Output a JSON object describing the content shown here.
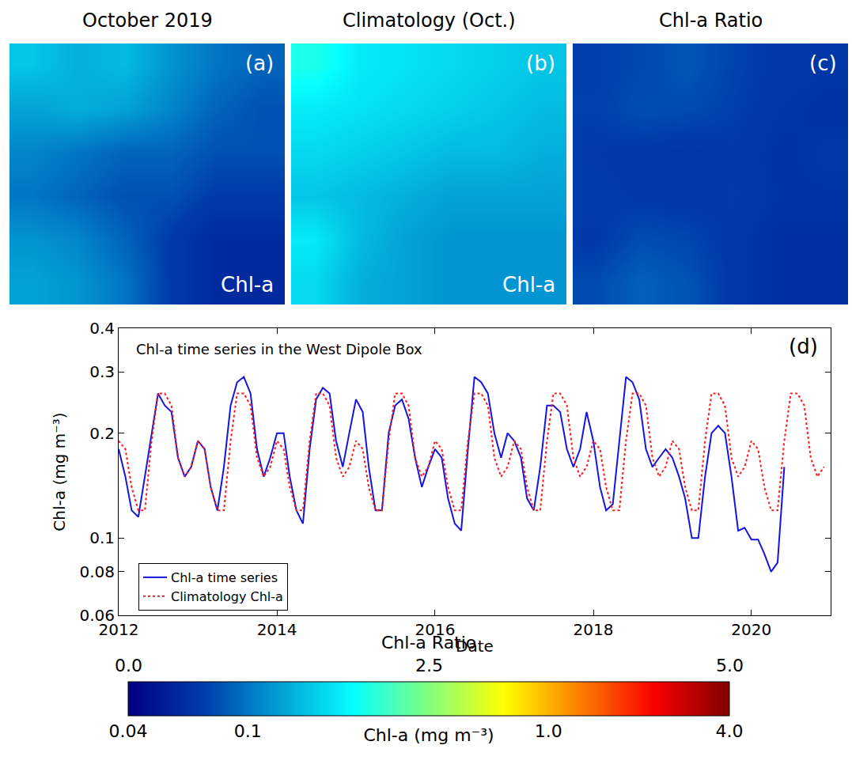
{
  "chart_data": [
    {
      "type": "heatmap",
      "title": "October 2019",
      "annotations": [
        "(a)",
        "Chl-a"
      ],
      "log": true,
      "zlim": [
        0.04,
        4
      ],
      "cells": [
        [
          0.16,
          0.14,
          0.15,
          0.12,
          0.1,
          0.09
        ],
        [
          0.13,
          0.14,
          0.13,
          0.11,
          0.09,
          0.08
        ],
        [
          0.11,
          0.1,
          0.09,
          0.09,
          0.08,
          0.08
        ],
        [
          0.1,
          0.09,
          0.08,
          0.08,
          0.07,
          0.07
        ],
        [
          0.12,
          0.11,
          0.09,
          0.07,
          0.06,
          0.06
        ],
        [
          0.13,
          0.12,
          0.1,
          0.07,
          0.06,
          0.06
        ]
      ]
    },
    {
      "type": "heatmap",
      "title": "Climatology (Oct.)",
      "annotations": [
        "(b)",
        "Chl-a"
      ],
      "log": true,
      "zlim": [
        0.04,
        4
      ],
      "cells": [
        [
          0.25,
          0.2,
          0.19,
          0.18,
          0.17,
          0.16
        ],
        [
          0.2,
          0.19,
          0.18,
          0.17,
          0.16,
          0.15
        ],
        [
          0.18,
          0.17,
          0.16,
          0.15,
          0.15,
          0.14
        ],
        [
          0.16,
          0.15,
          0.14,
          0.13,
          0.13,
          0.13
        ],
        [
          0.2,
          0.15,
          0.13,
          0.12,
          0.12,
          0.12
        ],
        [
          0.18,
          0.14,
          0.13,
          0.12,
          0.12,
          0.12
        ]
      ]
    },
    {
      "type": "heatmap",
      "title": "Chl-a Ratio",
      "annotations": [
        "(c)"
      ],
      "log": false,
      "zlim": [
        0,
        5
      ],
      "cells": [
        [
          0.64,
          0.7,
          0.79,
          0.67,
          0.59,
          0.56
        ],
        [
          0.65,
          0.74,
          0.72,
          0.65,
          0.56,
          0.53
        ],
        [
          0.61,
          0.59,
          0.56,
          0.6,
          0.53,
          0.57
        ],
        [
          0.63,
          0.6,
          0.57,
          0.62,
          0.54,
          0.54
        ],
        [
          0.6,
          0.73,
          0.69,
          0.58,
          0.5,
          0.5
        ],
        [
          0.72,
          0.86,
          0.77,
          0.58,
          0.5,
          0.5
        ]
      ]
    },
    {
      "type": "line",
      "annotations": [
        "(d)",
        "Chl-a time series in the West Dipole Box"
      ],
      "x_label": "Date",
      "y_label": "Chl-a (mg m⁻³)",
      "log": "y",
      "grid": false,
      "legend": "lower left",
      "xlim": [
        "2012-01",
        "2021-01"
      ],
      "xticks": [
        {
          "value": "2012-01",
          "label": "2012"
        },
        {
          "value": "2014-01",
          "label": "2014"
        },
        {
          "value": "2016-01",
          "label": "2016"
        },
        {
          "value": "2018-01",
          "label": "2018"
        },
        {
          "value": "2020-01",
          "label": "2020"
        }
      ],
      "ylim": [
        0.06,
        0.4
      ],
      "yticks": [
        0.06,
        0.08,
        0.1,
        0.2,
        0.3,
        0.4
      ],
      "x": [
        "2012-01",
        "2012-02",
        "2012-03",
        "2012-04",
        "2012-05",
        "2012-06",
        "2012-07",
        "2012-08",
        "2012-09",
        "2012-10",
        "2012-11",
        "2012-12",
        "2013-01",
        "2013-02",
        "2013-03",
        "2013-04",
        "2013-05",
        "2013-06",
        "2013-07",
        "2013-08",
        "2013-09",
        "2013-10",
        "2013-11",
        "2013-12",
        "2014-01",
        "2014-02",
        "2014-03",
        "2014-04",
        "2014-05",
        "2014-06",
        "2014-07",
        "2014-08",
        "2014-09",
        "2014-10",
        "2014-11",
        "2014-12",
        "2015-01",
        "2015-02",
        "2015-03",
        "2015-04",
        "2015-05",
        "2015-06",
        "2015-07",
        "2015-08",
        "2015-09",
        "2015-10",
        "2015-11",
        "2015-12",
        "2016-01",
        "2016-02",
        "2016-03",
        "2016-04",
        "2016-05",
        "2016-06",
        "2016-07",
        "2016-08",
        "2016-09",
        "2016-10",
        "2016-11",
        "2016-12",
        "2017-01",
        "2017-02",
        "2017-03",
        "2017-04",
        "2017-05",
        "2017-06",
        "2017-07",
        "2017-08",
        "2017-09",
        "2017-10",
        "2017-11",
        "2017-12",
        "2018-01",
        "2018-02",
        "2018-03",
        "2018-04",
        "2018-05",
        "2018-06",
        "2018-07",
        "2018-08",
        "2018-09",
        "2018-10",
        "2018-11",
        "2018-12",
        "2019-01",
        "2019-02",
        "2019-03",
        "2019-04",
        "2019-05",
        "2019-06",
        "2019-07",
        "2019-08",
        "2019-09",
        "2019-10",
        "2019-11",
        "2019-12",
        "2020-01",
        "2020-02",
        "2020-03",
        "2020-04",
        "2020-05",
        "2020-06",
        "2020-07",
        "2020-08",
        "2020-09",
        "2020-10",
        "2020-11",
        "2020-12"
      ],
      "series": [
        {
          "name": "Chl-a time series",
          "color": "#1515e0",
          "line_style": "solid",
          "values": [
            0.18,
            0.15,
            0.12,
            0.115,
            0.15,
            0.2,
            0.26,
            0.24,
            0.23,
            0.17,
            0.15,
            0.16,
            0.19,
            0.18,
            0.14,
            0.12,
            0.16,
            0.24,
            0.28,
            0.29,
            0.26,
            0.18,
            0.15,
            0.17,
            0.2,
            0.2,
            0.15,
            0.12,
            0.11,
            0.18,
            0.25,
            0.27,
            0.26,
            0.19,
            0.16,
            0.2,
            0.25,
            0.23,
            0.16,
            0.12,
            0.12,
            0.2,
            0.24,
            0.25,
            0.22,
            0.17,
            0.14,
            0.16,
            0.18,
            0.17,
            0.13,
            0.11,
            0.105,
            0.18,
            0.29,
            0.28,
            0.26,
            0.2,
            0.17,
            0.2,
            0.19,
            0.17,
            0.13,
            0.12,
            0.16,
            0.24,
            0.24,
            0.23,
            0.18,
            0.16,
            0.18,
            0.23,
            0.19,
            0.14,
            0.12,
            0.125,
            0.19,
            0.29,
            0.28,
            0.25,
            0.18,
            0.16,
            0.17,
            0.18,
            0.17,
            0.15,
            0.13,
            0.1,
            0.1,
            0.15,
            0.2,
            0.21,
            0.2,
            0.15,
            0.105,
            0.107,
            0.099,
            0.099,
            0.09,
            0.08,
            0.085,
            0.16,
            null,
            null,
            null,
            null,
            null,
            null
          ]
        },
        {
          "name": "Climatology Chl-a",
          "color": "#ff1a1a",
          "line_style": "dotted",
          "values": [
            0.19,
            0.18,
            0.14,
            0.12,
            0.12,
            0.19,
            0.26,
            0.26,
            0.24,
            0.17,
            0.15,
            0.16,
            0.19,
            0.18,
            0.14,
            0.12,
            0.12,
            0.19,
            0.26,
            0.26,
            0.24,
            0.17,
            0.15,
            0.16,
            0.19,
            0.18,
            0.14,
            0.12,
            0.12,
            0.19,
            0.26,
            0.26,
            0.24,
            0.17,
            0.15,
            0.16,
            0.19,
            0.18,
            0.14,
            0.12,
            0.12,
            0.19,
            0.26,
            0.26,
            0.24,
            0.17,
            0.15,
            0.16,
            0.19,
            0.18,
            0.14,
            0.12,
            0.12,
            0.19,
            0.26,
            0.26,
            0.24,
            0.17,
            0.15,
            0.16,
            0.19,
            0.18,
            0.14,
            0.12,
            0.12,
            0.19,
            0.26,
            0.26,
            0.24,
            0.17,
            0.15,
            0.16,
            0.19,
            0.18,
            0.14,
            0.12,
            0.12,
            0.19,
            0.26,
            0.26,
            0.24,
            0.17,
            0.15,
            0.16,
            0.19,
            0.18,
            0.14,
            0.12,
            0.12,
            0.19,
            0.26,
            0.26,
            0.24,
            0.17,
            0.15,
            0.16,
            0.19,
            0.18,
            0.14,
            0.12,
            0.12,
            0.19,
            0.26,
            0.26,
            0.24,
            0.17,
            0.15,
            0.16
          ]
        }
      ]
    }
  ],
  "colorbar": {
    "title": "Chl-a (mg m⁻³)",
    "ticks": [
      0.04,
      0.1,
      {
        "value": 1,
        "label": "1.0"
      },
      {
        "value": 4,
        "label": "4.0"
      }
    ],
    "ratio_title": "Chl-a Ratio",
    "ratio_ticks": [
      {
        "value": 0,
        "label": "0.0"
      },
      2.5,
      {
        "value": 5,
        "label": "5.0"
      }
    ]
  }
}
